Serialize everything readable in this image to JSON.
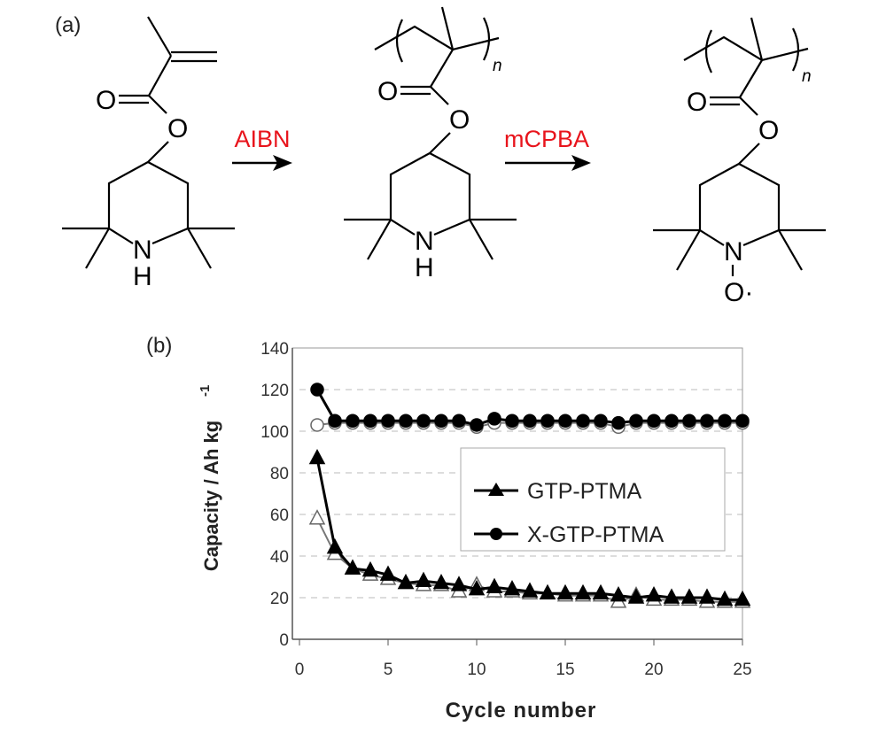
{
  "scheme": {
    "panel_label": "(a)",
    "reagent_1": "AIBN",
    "reagent_2": "mCPBA",
    "atoms": {
      "oxygen": "O",
      "nitrogen": "N",
      "hydrogen": "H",
      "repeat": "n",
      "nitroxide": "O·"
    },
    "reagent_color": "#e8141c"
  },
  "chart_data": {
    "panel_label": "(b)",
    "type": "line",
    "xlabel": "Cycle number",
    "ylabel": "Capacity / Ah kg",
    "ylabel_superscript": "-1",
    "xlim": [
      0,
      25
    ],
    "ylim": [
      0,
      140
    ],
    "xticks": [
      0,
      5,
      10,
      15,
      20,
      25
    ],
    "yticks": [
      0,
      20,
      40,
      60,
      80,
      100,
      120,
      140
    ],
    "grid": "horizontal dashed",
    "legend_placement": "center-right",
    "x": [
      1,
      2,
      3,
      4,
      5,
      6,
      7,
      8,
      9,
      10,
      11,
      12,
      13,
      14,
      15,
      16,
      17,
      18,
      19,
      20,
      21,
      22,
      23,
      24,
      25
    ],
    "series": [
      {
        "name": "X-GTP-PTMA",
        "marker": "filled-circle",
        "values": [
          120,
          105,
          105,
          105,
          105,
          105,
          105,
          105,
          105,
          103,
          106,
          105,
          105,
          105,
          105,
          105,
          105,
          104,
          105,
          105,
          105,
          105,
          105,
          105,
          105
        ]
      },
      {
        "marker": "open-circle",
        "values": [
          103,
          104,
          104,
          104,
          104,
          104,
          104,
          104,
          104,
          102,
          104,
          104,
          104,
          104,
          104,
          104,
          104,
          102,
          104,
          104,
          104,
          104,
          104,
          104,
          104
        ]
      },
      {
        "name": "GTP-PTMA",
        "marker": "filled-triangle",
        "values": [
          87,
          44,
          34,
          33,
          31,
          27,
          28,
          27,
          26,
          24,
          25,
          24,
          23,
          22,
          22,
          22,
          22,
          21,
          20,
          21,
          20,
          20,
          20,
          19,
          19
        ]
      },
      {
        "marker": "open-triangle",
        "values": [
          58,
          41,
          34,
          31,
          29,
          27,
          26,
          26,
          23,
          26,
          23,
          23,
          22,
          22,
          21,
          21,
          21,
          18,
          21,
          19,
          19,
          19,
          18,
          18,
          18
        ]
      }
    ],
    "legend": [
      {
        "label": "GTP-PTMA",
        "marker": "filled-triangle"
      },
      {
        "label": "X-GTP-PTMA",
        "marker": "filled-circle"
      }
    ]
  }
}
